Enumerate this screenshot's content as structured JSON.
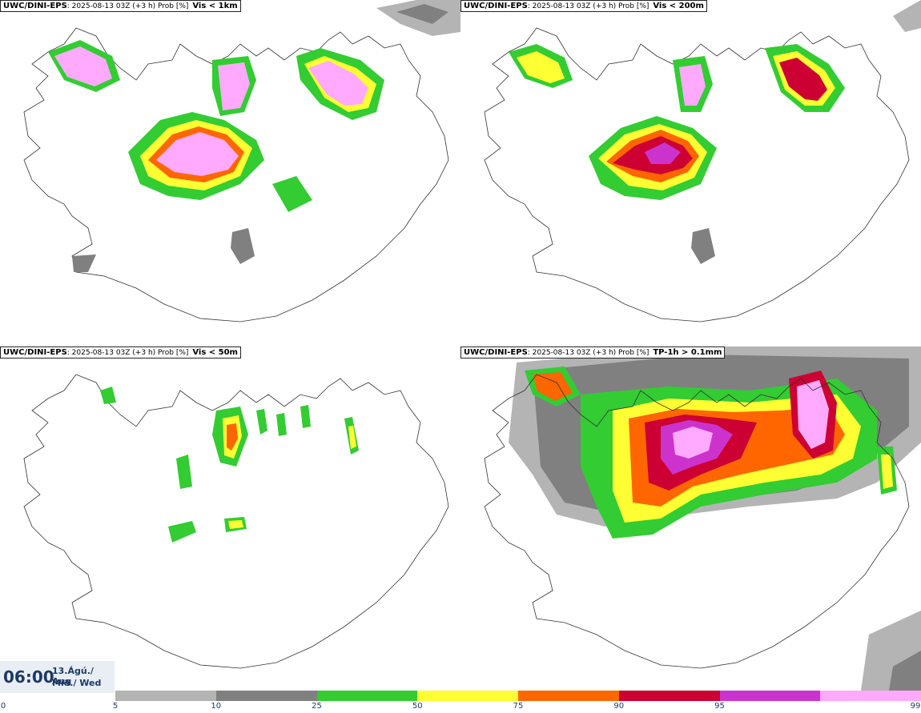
{
  "panels": [
    {
      "source": "UWC/DINI-EPS",
      "run": ": 2025-08-13 03Z (+3 h) Prob [%]",
      "variable": "Vis < 1km"
    },
    {
      "source": "UWC/DINI-EPS",
      "run": ": 2025-08-13 03Z (+3 h) Prob [%]",
      "variable": "Vis < 200m"
    },
    {
      "source": "UWC/DINI-EPS",
      "run": ": 2025-08-13 03Z (+3 h) Prob [%]",
      "variable": "Vis < 50m"
    },
    {
      "source": "UWC/DINI-EPS",
      "run": ": 2025-08-13 03Z (+3 h) Prob [%]",
      "variable": "TP-1h > 0.1mm"
    }
  ],
  "valid_time": {
    "time": "06:00",
    "date_line1": "13.Ágú./ Aug",
    "date_line2": "Mið./ Wed"
  },
  "legend": {
    "ticks": [
      "0",
      "5",
      "10",
      "25",
      "50",
      "75",
      "90",
      "95",
      "99"
    ],
    "colors": [
      "#b4b4b4",
      "#808080",
      "#33cc33",
      "#ffff33",
      "#ff6600",
      "#cc0033",
      "#cc33cc",
      "#ffaaff"
    ]
  },
  "map_region": "Iceland"
}
